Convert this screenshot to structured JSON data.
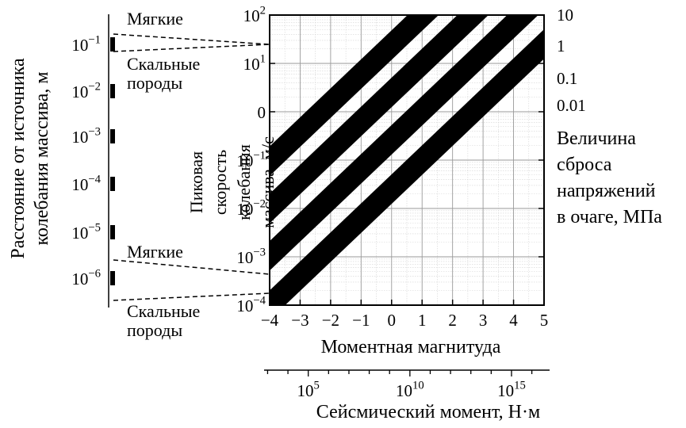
{
  "chart_data": {
    "type": "line",
    "x": [
      -4,
      -3,
      -2,
      -1,
      0,
      1,
      2,
      3,
      4,
      5
    ],
    "xlim": [
      -4,
      5
    ],
    "xlabel": "Моментная магнитуда",
    "xtick_labels": [
      "−4",
      "−3",
      "−2",
      "−1",
      "0",
      "1",
      "2",
      "3",
      "4",
      "5"
    ],
    "yscale": "log",
    "ylim_exponent": [
      -4,
      2
    ],
    "ylabel": "Пиковая скорость колебания массива, м/с",
    "ytick_labels": [
      {
        "exp": 2,
        "base": "10",
        "sup": "2"
      },
      {
        "exp": 1,
        "base": "10",
        "sup": "1"
      },
      {
        "exp": 0,
        "base": "0",
        "sup": ""
      },
      {
        "exp": -1,
        "base": "10",
        "sup": "−1"
      },
      {
        "exp": -2,
        "base": "10",
        "sup": "−2"
      },
      {
        "exp": -3,
        "base": "10",
        "sup": "−3"
      },
      {
        "exp": -4,
        "base": "10",
        "sup": "−4"
      }
    ],
    "series": [
      {
        "name": "10",
        "values": [
          -1.02,
          -0.42,
          0.18,
          0.78,
          1.38,
          1.98,
          2.58,
          3.18,
          3.78,
          4.38
        ]
      },
      {
        "name": "1",
        "values": [
          -2.0,
          -1.4,
          -0.8,
          -0.2,
          0.4,
          1.0,
          1.6,
          2.2,
          2.8,
          3.4
        ]
      },
      {
        "name": "0.1",
        "values": [
          -2.98,
          -2.38,
          -1.78,
          -1.18,
          -0.58,
          0.02,
          0.62,
          1.22,
          1.82,
          2.42
        ]
      },
      {
        "name": "0.01",
        "values": [
          -4.0,
          -3.4,
          -2.8,
          -2.2,
          -1.6,
          -1.0,
          -0.4,
          0.2,
          0.8,
          1.4
        ]
      }
    ],
    "series_values_note": "",
    "legend_title": [
      "Величина",
      "сброса",
      "напряжений",
      "в очаге, МПа"
    ],
    "secondary_x_axis": {
      "label": "Сейсмический момент, Н·м",
      "tick_labels": [
        {
          "base": "10",
          "sup": "5"
        },
        {
          "base": "10",
          "sup": "10"
        },
        {
          "base": "10",
          "sup": "15"
        }
      ]
    },
    "distance_axis": {
      "label_lines": [
        "Расстояние от источника",
        "колебания массива, м"
      ],
      "tick_labels": [
        {
          "base": "10",
          "sup": "−1"
        },
        {
          "base": "10",
          "sup": "−2"
        },
        {
          "base": "10",
          "sup": "−3"
        },
        {
          "base": "10",
          "sup": "−4"
        },
        {
          "base": "10",
          "sup": "−5"
        },
        {
          "base": "10",
          "sup": "−6"
        }
      ]
    },
    "rock_labels": {
      "soft": "Мягкие",
      "hard": [
        "Скальные",
        "породы"
      ]
    },
    "grid": true
  }
}
